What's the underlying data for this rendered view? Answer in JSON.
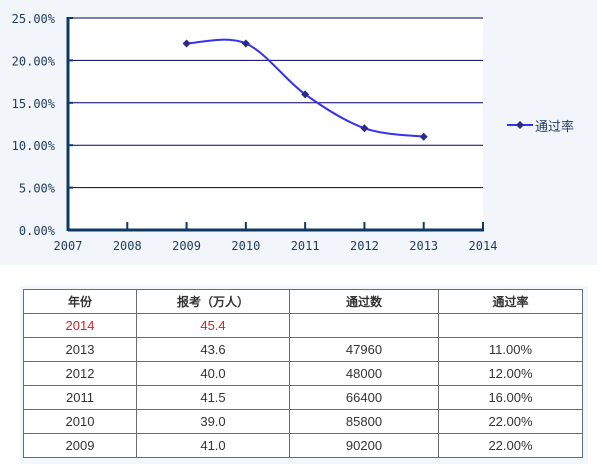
{
  "chart_data": {
    "type": "line",
    "title": "",
    "xlabel": "",
    "ylabel": "",
    "x": [
      2009,
      2010,
      2011,
      2012,
      2013
    ],
    "series": [
      {
        "name": "通过率",
        "values": [
          22.0,
          22.0,
          16.0,
          12.0,
          11.0
        ],
        "color": "#3333ee",
        "marker": "diamond",
        "smooth": true
      }
    ],
    "xlim": [
      2007,
      2014
    ],
    "ylim": [
      0,
      25
    ],
    "x_ticks": [
      "2007",
      "2008",
      "2009",
      "2010",
      "2011",
      "2012",
      "2013",
      "2014"
    ],
    "y_ticks": [
      "0.00%",
      "5.00%",
      "10.00%",
      "15.00%",
      "20.00%",
      "25.00%"
    ],
    "grid": true,
    "legend_position": "right"
  },
  "legend": {
    "label": "通过率"
  },
  "table": {
    "headers": [
      "年份",
      "报考（万人）",
      "通过数",
      "通过率"
    ],
    "rows": [
      {
        "year": "2014",
        "applicants": "45.4",
        "passed": "",
        "rate": "",
        "highlight": true
      },
      {
        "year": "2013",
        "applicants": "43.6",
        "passed": "47960",
        "rate": "11.00%"
      },
      {
        "year": "2012",
        "applicants": "40.0",
        "passed": "48000",
        "rate": "12.00%"
      },
      {
        "year": "2011",
        "applicants": "41.5",
        "passed": "66400",
        "rate": "16.00%"
      },
      {
        "year": "2010",
        "applicants": "39.0",
        "passed": "85800",
        "rate": "22.00%"
      },
      {
        "year": "2009",
        "applicants": "41.0",
        "passed": "90200",
        "rate": "22.00%"
      }
    ]
  },
  "colors": {
    "axis": "#0d3a63",
    "grid": "#00006b",
    "line": "#3333ee",
    "marker": "#2a2a8a",
    "highlight_text": "#c0282c"
  }
}
